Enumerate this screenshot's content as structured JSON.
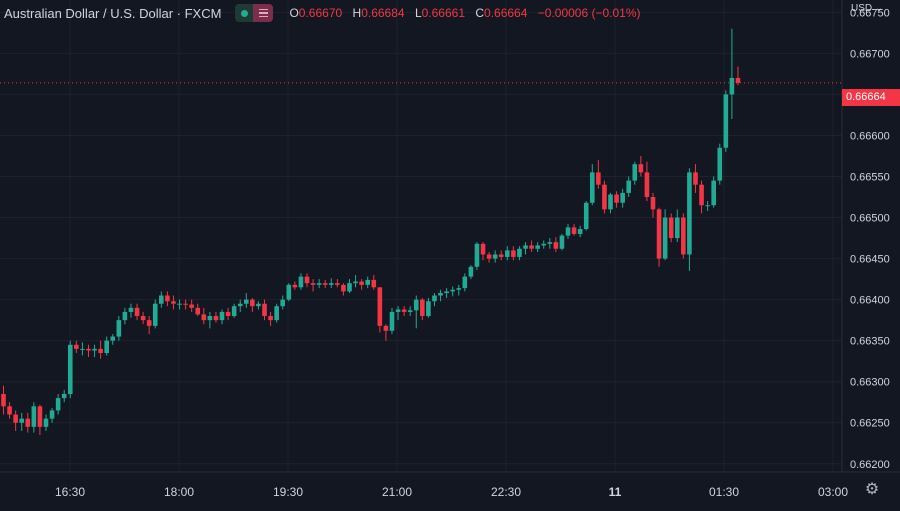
{
  "legend": {
    "title": "Australian Dollar / U.S. Dollar · FXCM",
    "o_label": "O",
    "o": "0.66670",
    "h_label": "H",
    "h": "0.66684",
    "l_label": "L",
    "l": "0.66661",
    "c_label": "C",
    "c": "0.66664",
    "change": "−0.00006 (−0.01%)"
  },
  "currency_menu": "USD ⌄",
  "last_price_label": "0.66664",
  "colors": {
    "background": "#131722",
    "up": "#22ab94",
    "down": "#f23645",
    "grid": "#1e222d",
    "text": "#d1d4dc"
  },
  "icons": {
    "settings": "gear-icon",
    "visibility": "eye-toggle-icon"
  },
  "chart_data": {
    "type": "candlestick",
    "x_ticks": [
      "16:30",
      "18:00",
      "19:30",
      "21:00",
      "22:30",
      "11",
      "01:30",
      "03:00"
    ],
    "y_ticks": [
      "0.66750",
      "0.66700",
      "0.66650",
      "0.66600",
      "0.66550",
      "0.66500",
      "0.66450",
      "0.66400",
      "0.66350",
      "0.66300",
      "0.66250",
      "0.66200"
    ],
    "ylim": [
      0.6619,
      0.66765
    ],
    "grid": true,
    "last_price": 0.66664,
    "bar_interval_minutes": 10,
    "start_time": "15:00",
    "candles": [
      [
        0.66285,
        0.66295,
        0.6626,
        0.6627
      ],
      [
        0.6627,
        0.66275,
        0.66255,
        0.6626
      ],
      [
        0.6626,
        0.66265,
        0.6624,
        0.6625
      ],
      [
        0.6625,
        0.66262,
        0.6624,
        0.66255
      ],
      [
        0.66255,
        0.66262,
        0.66238,
        0.66245
      ],
      [
        0.66245,
        0.66275,
        0.66238,
        0.6627
      ],
      [
        0.6627,
        0.66272,
        0.66235,
        0.66245
      ],
      [
        0.66245,
        0.6626,
        0.6624,
        0.66255
      ],
      [
        0.66255,
        0.66268,
        0.6625,
        0.66265
      ],
      [
        0.66265,
        0.66285,
        0.6626,
        0.6628
      ],
      [
        0.6628,
        0.6629,
        0.66275,
        0.66285
      ],
      [
        0.66285,
        0.6635,
        0.6628,
        0.66345
      ],
      [
        0.66345,
        0.6635,
        0.66335,
        0.6634
      ],
      [
        0.6634,
        0.66348,
        0.66332,
        0.6634
      ],
      [
        0.6634,
        0.66345,
        0.6633,
        0.66338
      ],
      [
        0.66338,
        0.66345,
        0.6633,
        0.6634
      ],
      [
        0.6634,
        0.6635,
        0.66328,
        0.66335
      ],
      [
        0.66335,
        0.66355,
        0.66332,
        0.6635
      ],
      [
        0.6635,
        0.66358,
        0.66345,
        0.66355
      ],
      [
        0.66355,
        0.6638,
        0.6635,
        0.66375
      ],
      [
        0.66375,
        0.6639,
        0.6637,
        0.66385
      ],
      [
        0.66385,
        0.66395,
        0.66378,
        0.6639
      ],
      [
        0.6639,
        0.66395,
        0.66375,
        0.6638
      ],
      [
        0.6638,
        0.66385,
        0.6637,
        0.66375
      ],
      [
        0.66375,
        0.6638,
        0.66358,
        0.66368
      ],
      [
        0.66368,
        0.664,
        0.66365,
        0.66395
      ],
      [
        0.66395,
        0.6641,
        0.6639,
        0.66405
      ],
      [
        0.66405,
        0.6641,
        0.66392,
        0.66398
      ],
      [
        0.66398,
        0.66405,
        0.66388,
        0.66395
      ],
      [
        0.66395,
        0.664,
        0.66388,
        0.66395
      ],
      [
        0.66395,
        0.664,
        0.66388,
        0.66394
      ],
      [
        0.66394,
        0.664,
        0.66385,
        0.6639
      ],
      [
        0.6639,
        0.66395,
        0.6638,
        0.66382
      ],
      [
        0.66382,
        0.6639,
        0.6637,
        0.66375
      ],
      [
        0.66375,
        0.66385,
        0.66365,
        0.6638
      ],
      [
        0.6638,
        0.66385,
        0.66372,
        0.66375
      ],
      [
        0.66375,
        0.66388,
        0.6637,
        0.66385
      ],
      [
        0.66385,
        0.6639,
        0.66375,
        0.6638
      ],
      [
        0.6638,
        0.66395,
        0.66378,
        0.66392
      ],
      [
        0.66392,
        0.664,
        0.66385,
        0.66395
      ],
      [
        0.66395,
        0.66408,
        0.6639,
        0.664
      ],
      [
        0.664,
        0.66402,
        0.66385,
        0.66392
      ],
      [
        0.66392,
        0.66398,
        0.66388,
        0.66395
      ],
      [
        0.66395,
        0.664,
        0.66375,
        0.6638
      ],
      [
        0.6638,
        0.66385,
        0.66368,
        0.66375
      ],
      [
        0.66375,
        0.66395,
        0.66372,
        0.66392
      ],
      [
        0.66392,
        0.66405,
        0.66388,
        0.664
      ],
      [
        0.664,
        0.6642,
        0.66398,
        0.66418
      ],
      [
        0.66418,
        0.66422,
        0.66412,
        0.66415
      ],
      [
        0.66415,
        0.66432,
        0.66412,
        0.66428
      ],
      [
        0.66428,
        0.66432,
        0.66415,
        0.6642
      ],
      [
        0.6642,
        0.66425,
        0.6641,
        0.66418
      ],
      [
        0.66418,
        0.66425,
        0.66414,
        0.6642
      ],
      [
        0.6642,
        0.66424,
        0.66414,
        0.66418
      ],
      [
        0.66418,
        0.66426,
        0.66414,
        0.6642
      ],
      [
        0.6642,
        0.66425,
        0.66415,
        0.66418
      ],
      [
        0.66418,
        0.6642,
        0.66405,
        0.6641
      ],
      [
        0.6641,
        0.66425,
        0.66408,
        0.6642
      ],
      [
        0.6642,
        0.6643,
        0.66415,
        0.66422
      ],
      [
        0.66422,
        0.66425,
        0.66412,
        0.66418
      ],
      [
        0.66418,
        0.66428,
        0.66414,
        0.66424
      ],
      [
        0.66424,
        0.6643,
        0.66412,
        0.66415
      ],
      [
        0.66415,
        0.66415,
        0.6636,
        0.66368
      ],
      [
        0.66368,
        0.6637,
        0.6635,
        0.66362
      ],
      [
        0.66362,
        0.6639,
        0.66358,
        0.66385
      ],
      [
        0.66385,
        0.66392,
        0.66375,
        0.66388
      ],
      [
        0.66388,
        0.66392,
        0.6638,
        0.66385
      ],
      [
        0.66385,
        0.66392,
        0.6638,
        0.66387
      ],
      [
        0.66387,
        0.66405,
        0.66365,
        0.664
      ],
      [
        0.664,
        0.66402,
        0.66375,
        0.6638
      ],
      [
        0.6638,
        0.66402,
        0.66378,
        0.66398
      ],
      [
        0.66398,
        0.66408,
        0.66392,
        0.66405
      ],
      [
        0.66405,
        0.66412,
        0.66398,
        0.66408
      ],
      [
        0.66408,
        0.66414,
        0.66402,
        0.6641
      ],
      [
        0.6641,
        0.66416,
        0.66404,
        0.66412
      ],
      [
        0.66412,
        0.66418,
        0.66405,
        0.66414
      ],
      [
        0.66414,
        0.66432,
        0.6641,
        0.66428
      ],
      [
        0.66428,
        0.66442,
        0.66425,
        0.6644
      ],
      [
        0.6644,
        0.6647,
        0.66436,
        0.66468
      ],
      [
        0.66468,
        0.6647,
        0.66448,
        0.66455
      ],
      [
        0.66455,
        0.66458,
        0.66445,
        0.6645
      ],
      [
        0.6645,
        0.6646,
        0.66445,
        0.66455
      ],
      [
        0.66455,
        0.6646,
        0.66448,
        0.66452
      ],
      [
        0.66452,
        0.66465,
        0.66448,
        0.6646
      ],
      [
        0.6646,
        0.66465,
        0.66448,
        0.66452
      ],
      [
        0.66452,
        0.66465,
        0.66448,
        0.66462
      ],
      [
        0.66462,
        0.6647,
        0.66455,
        0.66466
      ],
      [
        0.66466,
        0.66472,
        0.66458,
        0.66462
      ],
      [
        0.66462,
        0.6647,
        0.66458,
        0.66466
      ],
      [
        0.66466,
        0.66472,
        0.66462,
        0.66468
      ],
      [
        0.66468,
        0.66475,
        0.66462,
        0.6647
      ],
      [
        0.6647,
        0.66476,
        0.66458,
        0.66462
      ],
      [
        0.66462,
        0.6648,
        0.6646,
        0.66478
      ],
      [
        0.66478,
        0.66492,
        0.66474,
        0.66488
      ],
      [
        0.66488,
        0.66492,
        0.66478,
        0.6648
      ],
      [
        0.6648,
        0.6649,
        0.66476,
        0.66486
      ],
      [
        0.66486,
        0.6652,
        0.66484,
        0.66518
      ],
      [
        0.66518,
        0.66565,
        0.66515,
        0.66555
      ],
      [
        0.66555,
        0.6657,
        0.66535,
        0.6654
      ],
      [
        0.6654,
        0.66545,
        0.66505,
        0.6651
      ],
      [
        0.6651,
        0.6653,
        0.66505,
        0.66528
      ],
      [
        0.66528,
        0.66532,
        0.66512,
        0.66518
      ],
      [
        0.66518,
        0.66535,
        0.66512,
        0.6653
      ],
      [
        0.6653,
        0.6655,
        0.66525,
        0.66545
      ],
      [
        0.66545,
        0.66568,
        0.6654,
        0.66565
      ],
      [
        0.66565,
        0.66575,
        0.6655,
        0.66555
      ],
      [
        0.66555,
        0.66568,
        0.6652,
        0.66525
      ],
      [
        0.66525,
        0.6653,
        0.665,
        0.6651
      ],
      [
        0.6651,
        0.66512,
        0.6644,
        0.6645
      ],
      [
        0.6645,
        0.6651,
        0.66448,
        0.665
      ],
      [
        0.665,
        0.66505,
        0.6647,
        0.66475
      ],
      [
        0.66475,
        0.6651,
        0.6647,
        0.665
      ],
      [
        0.665,
        0.66505,
        0.6645,
        0.66455
      ],
      [
        0.66455,
        0.6656,
        0.66435,
        0.66555
      ],
      [
        0.66555,
        0.66565,
        0.6653,
        0.6654
      ],
      [
        0.6654,
        0.66545,
        0.66505,
        0.66515
      ],
      [
        0.66515,
        0.6652,
        0.66508,
        0.66515
      ],
      [
        0.66515,
        0.6655,
        0.66512,
        0.66545
      ],
      [
        0.66545,
        0.6659,
        0.6654,
        0.66585
      ],
      [
        0.66585,
        0.66655,
        0.6658,
        0.6665
      ],
      [
        0.6665,
        0.6673,
        0.6662,
        0.6667
      ],
      [
        0.6667,
        0.66684,
        0.66661,
        0.66664
      ]
    ]
  }
}
